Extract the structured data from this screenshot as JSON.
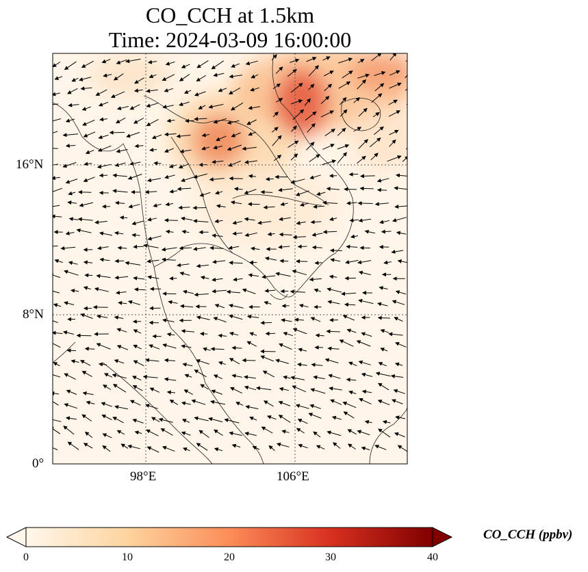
{
  "title": {
    "line1": "CO_CCH at 1.5km",
    "line2": "Time: 2024-03-09 16:00:00"
  },
  "map": {
    "lon_range": [
      93,
      112
    ],
    "lat_range": [
      0,
      22
    ],
    "lon_ticks": [
      {
        "value": 98,
        "label": "98°E"
      },
      {
        "value": 106,
        "label": "106°E"
      }
    ],
    "lat_ticks": [
      {
        "value": 0,
        "label": "0°"
      },
      {
        "value": 8,
        "label": "8°N"
      },
      {
        "value": 16,
        "label": "16°N"
      }
    ],
    "gridlines": "dotted",
    "field": "CO_CCH",
    "overlay": "wind vectors",
    "colormap": "OrRd"
  },
  "colorbar": {
    "label": "CO_CCH (ppbv)",
    "min": 0,
    "max": 40,
    "ticks": [
      0,
      10,
      20,
      30,
      40
    ],
    "extend": "both",
    "colors": [
      "#fff7ec",
      "#fdd49e",
      "#fc8d59",
      "#d7301f",
      "#7f0000"
    ]
  }
}
